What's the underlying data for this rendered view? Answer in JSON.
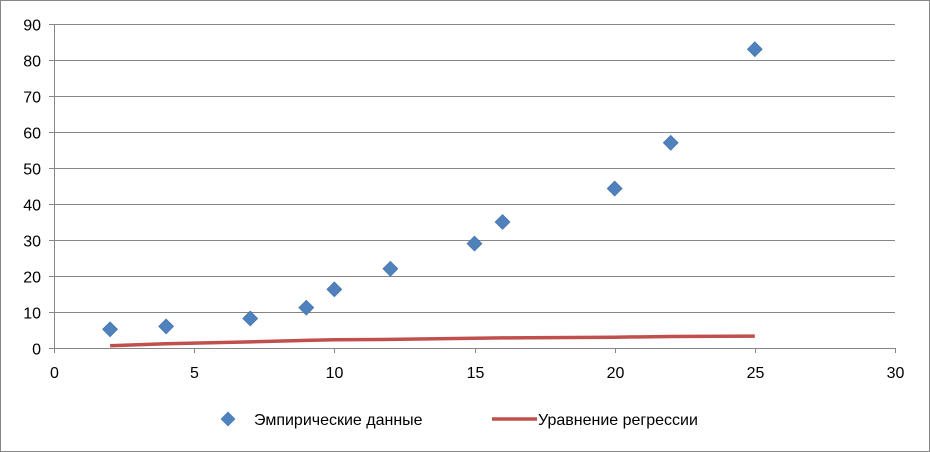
{
  "chart_data": {
    "type": "scatter",
    "title": "",
    "xlabel": "",
    "ylabel": "",
    "xlim": [
      0,
      30
    ],
    "ylim": [
      0,
      90
    ],
    "x_ticks": [
      0,
      5,
      10,
      15,
      20,
      25,
      30
    ],
    "y_ticks": [
      0,
      10,
      20,
      30,
      40,
      50,
      60,
      70,
      80,
      90
    ],
    "grid": "horizontal",
    "legend_position": "bottom",
    "series": [
      {
        "name": "Эмпирические данные",
        "kind": "scatter",
        "marker": "diamond",
        "color": "#4F81BD",
        "points": [
          {
            "x": 2,
            "y": 5.2
          },
          {
            "x": 4,
            "y": 6
          },
          {
            "x": 7,
            "y": 8.2
          },
          {
            "x": 9,
            "y": 11.2
          },
          {
            "x": 10,
            "y": 16.3
          },
          {
            "x": 12,
            "y": 22
          },
          {
            "x": 15,
            "y": 29
          },
          {
            "x": 16,
            "y": 35
          },
          {
            "x": 20,
            "y": 44.3
          },
          {
            "x": 22,
            "y": 57
          },
          {
            "x": 25,
            "y": 83
          }
        ]
      },
      {
        "name": "Уравнение регрессии",
        "kind": "line",
        "color": "#C0504D",
        "points": [
          {
            "x": 2,
            "y": 0.6
          },
          {
            "x": 4,
            "y": 1.2
          },
          {
            "x": 7,
            "y": 1.7
          },
          {
            "x": 9,
            "y": 2.1
          },
          {
            "x": 10,
            "y": 2.3
          },
          {
            "x": 12,
            "y": 2.4
          },
          {
            "x": 15,
            "y": 2.7
          },
          {
            "x": 16,
            "y": 2.8
          },
          {
            "x": 20,
            "y": 3.0
          },
          {
            "x": 22,
            "y": 3.2
          },
          {
            "x": 25,
            "y": 3.3
          }
        ]
      }
    ]
  }
}
